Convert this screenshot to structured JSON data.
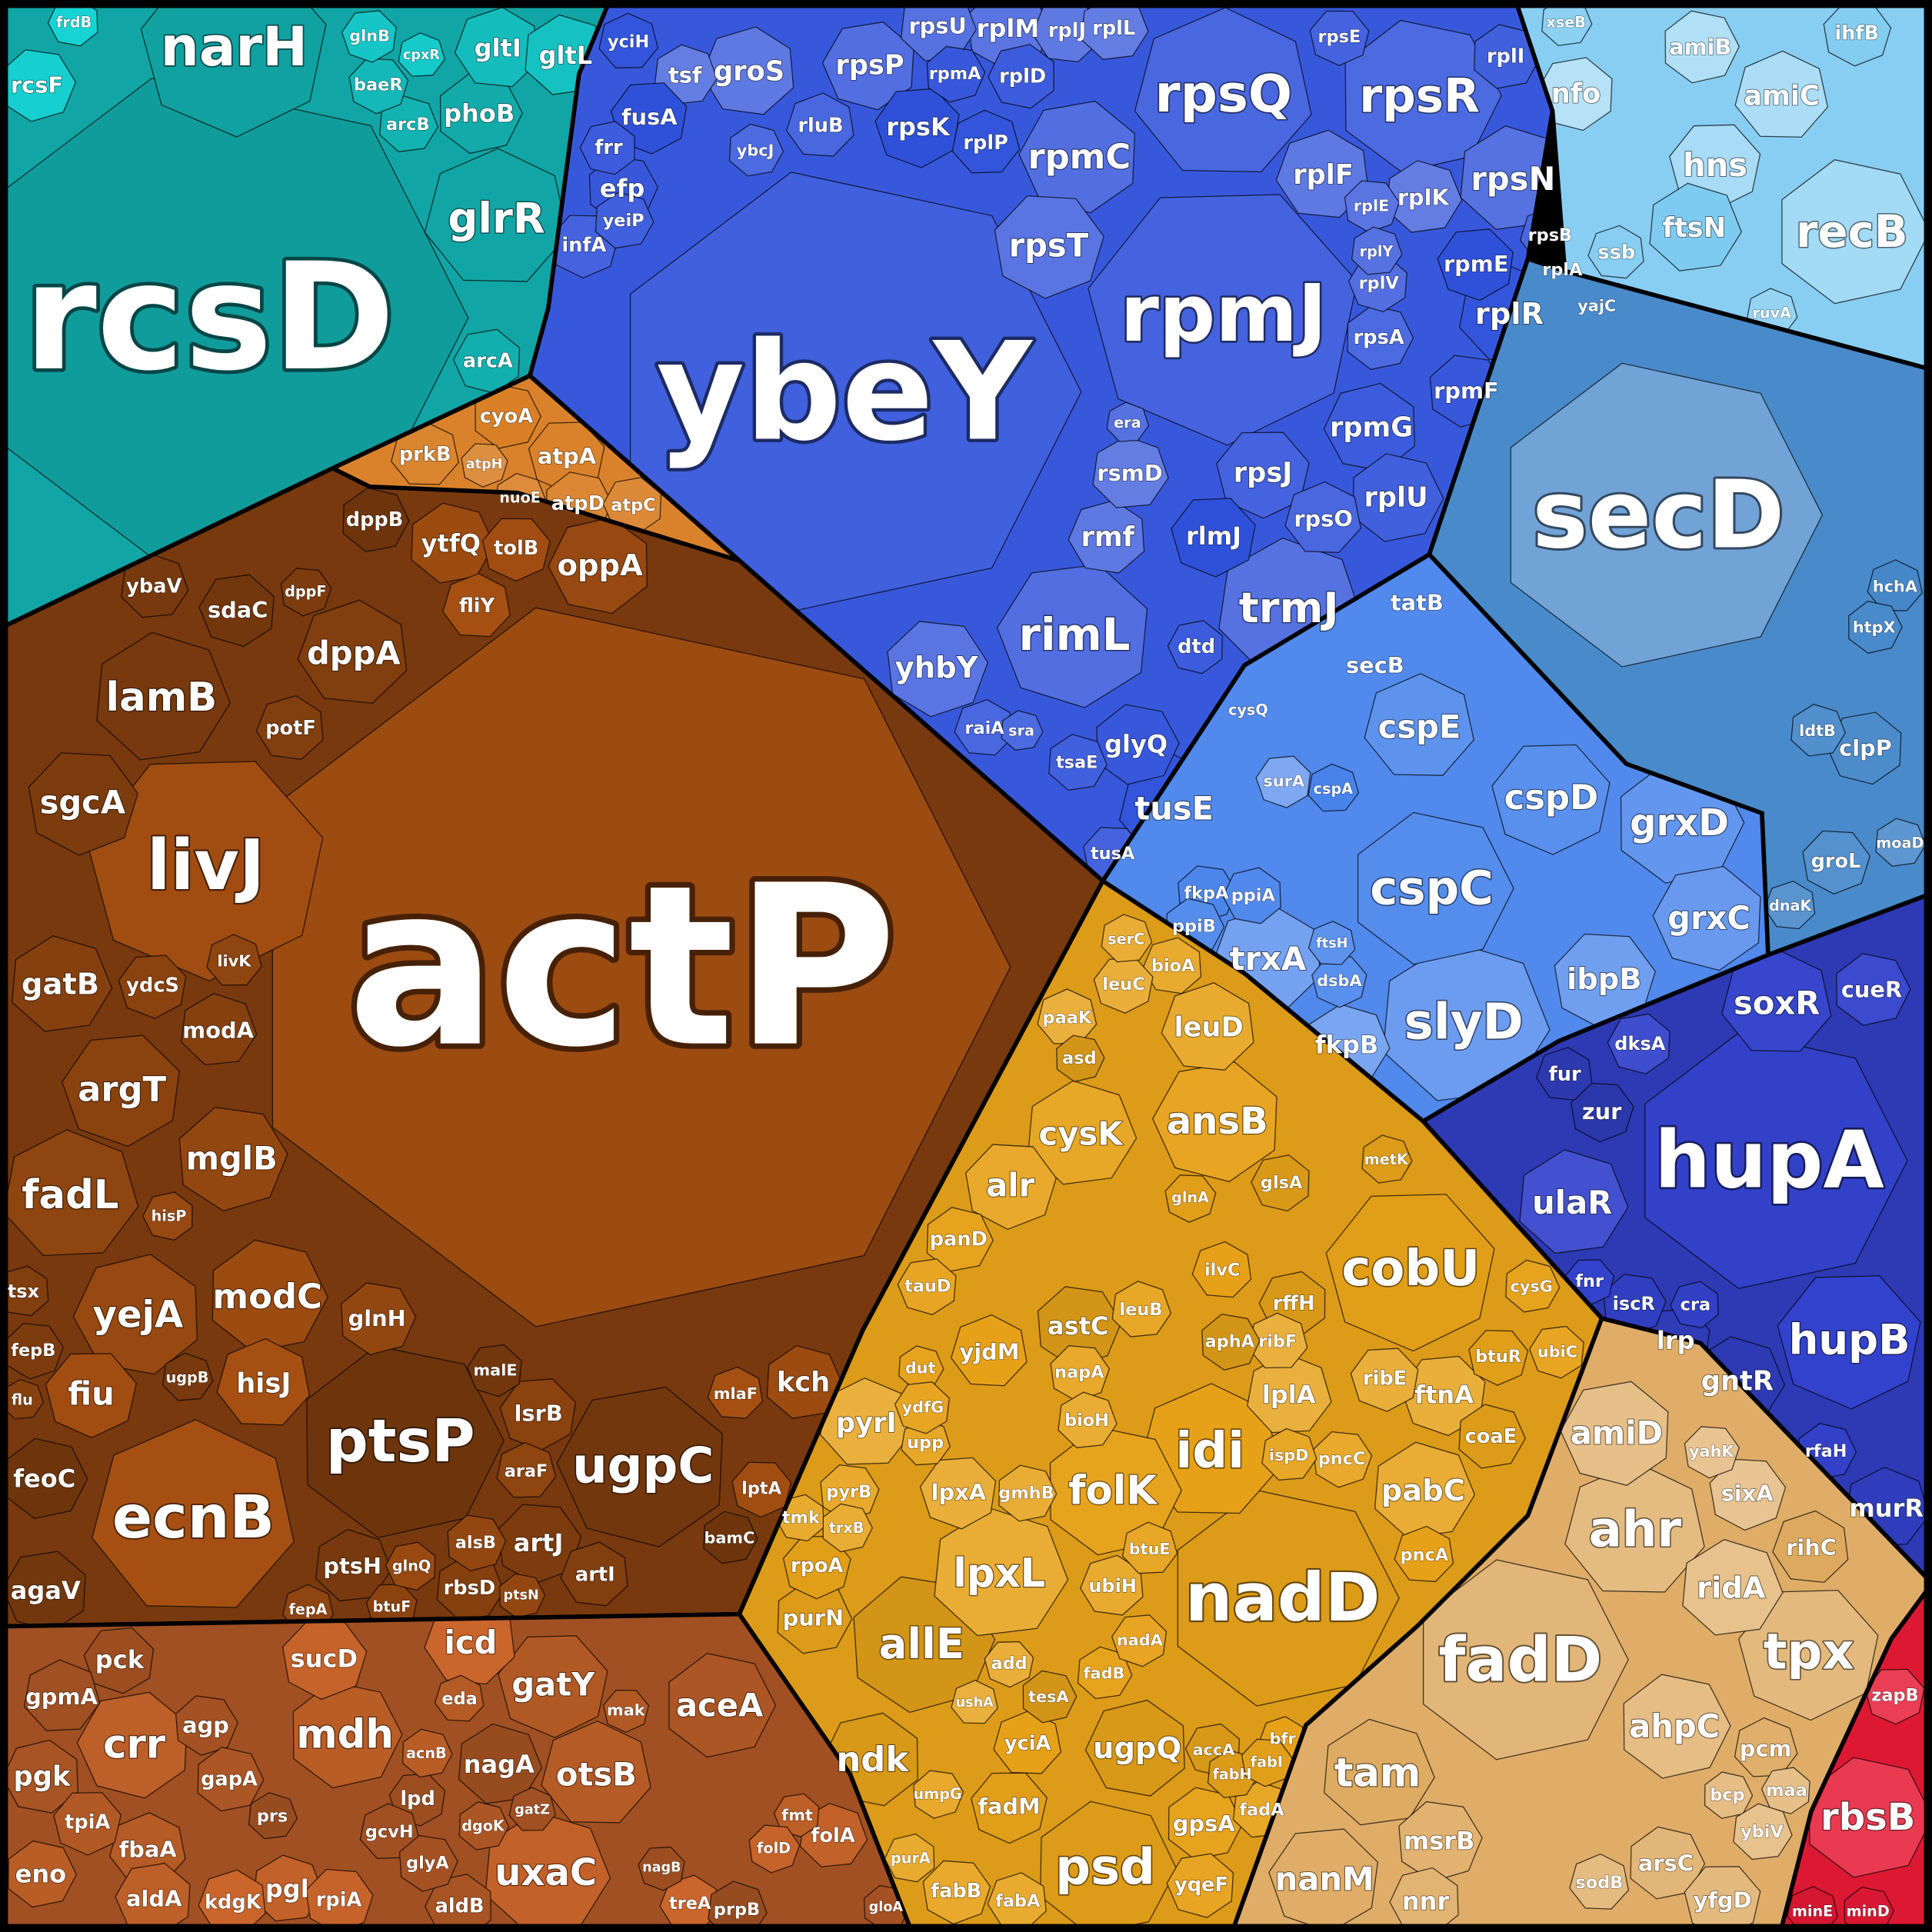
{
  "groups": [
    [
      "rcsD",
      "narH",
      "glrR",
      "phoB",
      "arcA",
      "arcB",
      "baeR",
      "gltI",
      "gltL",
      "glnB",
      "cpxR",
      "rcsF",
      "frdB"
    ],
    [
      "ybeY",
      "rpmJ",
      "rpsQ",
      "rpsR",
      "rpmC",
      "rpsN",
      "rpsT",
      "rplF",
      "rplK",
      "rpmE",
      "rplR",
      "rpmF",
      "rpmG",
      "rplU",
      "rpsJ",
      "rpsO",
      "rpsA",
      "rpsP",
      "rpsU",
      "rplM",
      "rplJ",
      "rplL",
      "rpsK",
      "rplP",
      "rpmA",
      "rplD",
      "rplI",
      "rpsE",
      "rpsB",
      "rplA",
      "rplV",
      "rplY",
      "rplE",
      "groS",
      "tsf",
      "fusA",
      "yciH",
      "efp",
      "frr",
      "yeiP",
      "infA",
      "rluB",
      "ybcJ",
      "rimL",
      "trmJ",
      "yhbY",
      "rmf",
      "rsmD",
      "rlmJ",
      "tusE",
      "glyQ",
      "dtd",
      "tsaE",
      "tusA",
      "raiA",
      "sra",
      "cysQ",
      "era"
    ],
    [
      "recB",
      "hns",
      "amiC",
      "amiB",
      "nfo",
      "ftsN",
      "ihfB",
      "ssb",
      "xseB",
      "yajC",
      "ruvA"
    ],
    [
      "secD",
      "tatB",
      "hchA",
      "htpX",
      "clpP",
      "ldtB",
      "groL",
      "dnaK",
      "moaD",
      "secB"
    ],
    [
      "cspC",
      "cspD",
      "cspE",
      "grxD",
      "grxC",
      "slyD",
      "ibpB",
      "trxA",
      "fkpB",
      "surA",
      "cspA",
      "fkpA",
      "ppiA",
      "ppiB",
      "dsbA",
      "ftsH"
    ],
    [
      "hupA",
      "hupB",
      "soxR",
      "cueR",
      "dksA",
      "ulaR",
      "zur",
      "fur",
      "gntR",
      "lrp",
      "murR",
      "iscR",
      "cra",
      "rfaH",
      "fnr"
    ],
    [
      "rbsB",
      "zapB",
      "minE",
      "minD"
    ],
    [
      "nadD",
      "cobU",
      "idi",
      "folK",
      "ansB",
      "cysK",
      "alr",
      "leuD",
      "pabC",
      "ftnA",
      "lplA",
      "astC",
      "ugpQ",
      "psd",
      "fadM",
      "yciA",
      "gpsA",
      "yqeF",
      "fadA",
      "fabB",
      "fabA",
      "lpxL",
      "lpxA",
      "pyrI",
      "allE",
      "ndk",
      "purN",
      "rpoA",
      "yjdM",
      "panD",
      "tauD",
      "leuB",
      "napA",
      "ubiH",
      "bioH",
      "ribE",
      "ribF",
      "aphA",
      "rffH",
      "coaE",
      "btuR",
      "pncA",
      "cysG",
      "ubiC",
      "ispD",
      "pncC",
      "bioA",
      "serC",
      "leuC",
      "paaK",
      "asd",
      "glsA",
      "metK",
      "glnA",
      "ilvC",
      "dut",
      "ydfG",
      "upp",
      "pyrB",
      "tmk",
      "trxB",
      "add",
      "ushA",
      "tesA",
      "accA",
      "fabH",
      "fabI",
      "bfr",
      "fadB",
      "nadA",
      "btuE",
      "umpG",
      "purA",
      "gmhB"
    ],
    [
      "fadD",
      "tpx",
      "ahr",
      "ahpC",
      "amiD",
      "ridA",
      "sixA",
      "rihC",
      "tam",
      "nanM",
      "pcm",
      "msrB",
      "nnr",
      "arsC",
      "yfgD",
      "sodB",
      "bcp",
      "maa",
      "ybiV",
      "yahK"
    ],
    [
      "actP",
      "livJ",
      "ecnB",
      "ptsP",
      "ugpC",
      "lamB",
      "sgcA",
      "dppA",
      "gatB",
      "argT",
      "fadL",
      "mglB",
      "yejA",
      "modC",
      "fiu",
      "hisJ",
      "feoC",
      "agaV",
      "ptsH",
      "artJ",
      "artI",
      "rbsD",
      "lsrB",
      "araF",
      "alsB",
      "oppA",
      "ytfQ",
      "tolB",
      "fliY",
      "dppB",
      "sdaC",
      "ybaV",
      "dppF",
      "potF",
      "modA",
      "ydcS",
      "livK",
      "glnH",
      "hisP",
      "kch",
      "lptA",
      "mlaF",
      "bamC",
      "malE",
      "ugpB",
      "fepB",
      "tsx",
      "flu",
      "btuF",
      "fepA",
      "ptsN",
      "glnQ"
    ],
    [
      "cyoA",
      "atpA",
      "prkB",
      "atpD",
      "atpC",
      "nuoE",
      "atpH"
    ],
    [
      "aceA",
      "gatY",
      "otsB",
      "mdh",
      "crr",
      "uxaC",
      "sucD",
      "icd",
      "nagA",
      "pck",
      "gpmA",
      "agp",
      "pgk",
      "gapA",
      "tpiA",
      "fbaA",
      "eno",
      "aldA",
      "pgl",
      "rpiA",
      "kdgK",
      "prs",
      "lpd",
      "gcvH",
      "glyA",
      "aldB",
      "dgoK",
      "mak",
      "eda",
      "acnB",
      "fmt",
      "folA",
      "folD",
      "treA",
      "prpB",
      "nagB",
      "gatZ",
      "gloA"
    ]
  ]
}
